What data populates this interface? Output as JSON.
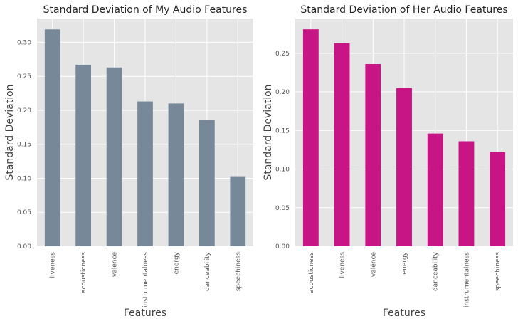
{
  "chart_data": [
    {
      "type": "bar",
      "title": "Standard Deviation of My Audio Features",
      "xlabel": "Features",
      "ylabel": "Standard Deviation",
      "categories": [
        "liveness",
        "acousticness",
        "valence",
        "instrumentalness",
        "energy",
        "danceability",
        "speechiness"
      ],
      "values": [
        0.319,
        0.267,
        0.263,
        0.213,
        0.21,
        0.186,
        0.103
      ],
      "ylim": [
        0,
        0.335
      ],
      "yticks": [
        "0.00",
        "0.05",
        "0.10",
        "0.15",
        "0.20",
        "0.25",
        "0.30"
      ],
      "color": "#778899",
      "grid": true
    },
    {
      "type": "bar",
      "title": "Standard Deviation of Her Audio Features",
      "xlabel": "Features",
      "ylabel": "Standard Deviation",
      "categories": [
        "acousticness",
        "liveness",
        "valence",
        "energy",
        "danceability",
        "instrumentalness",
        "speechiness"
      ],
      "values": [
        0.281,
        0.263,
        0.236,
        0.205,
        0.146,
        0.136,
        0.122
      ],
      "ylim": [
        0,
        0.295
      ],
      "yticks": [
        "0.00",
        "0.05",
        "0.10",
        "0.15",
        "0.20",
        "0.25"
      ],
      "color": "#C71585",
      "grid": true
    }
  ]
}
